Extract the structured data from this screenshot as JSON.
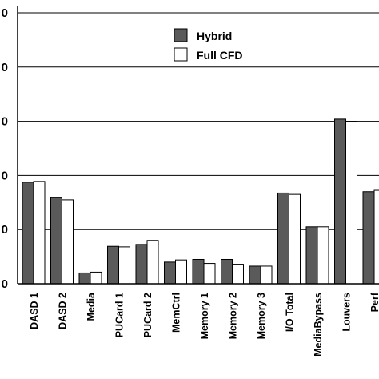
{
  "chart_data": {
    "type": "bar",
    "categories": [
      "DASD 1",
      "DASD 2",
      "Media",
      "PUCard 1",
      "PUCard 2",
      "MemCtrl",
      "Memory 1",
      "Memory 2",
      "Memory 3",
      "I/O Total",
      "MediaBypass",
      "Louvers",
      "Perf"
    ],
    "series": [
      {
        "name": "Hybrid",
        "color": "#5a5a5a",
        "values": [
          0.375,
          0.318,
          0.04,
          0.138,
          0.145,
          0.08,
          0.09,
          0.09,
          0.065,
          0.335,
          0.21,
          0.608,
          0.34
        ]
      },
      {
        "name": "Full CFD",
        "color": "#ffffff",
        "values": [
          0.378,
          0.31,
          0.043,
          0.136,
          0.16,
          0.088,
          0.075,
          0.072,
          0.065,
          0.33,
          0.21,
          0.6,
          0.345
        ]
      }
    ],
    "ylim": [
      0,
      1
    ],
    "yticks": [
      0,
      0.2,
      0.4,
      0.6,
      0.8,
      1.0
    ],
    "ytick_labels": [
      "0",
      "0",
      "0",
      "0",
      "0",
      "0"
    ],
    "grid": true,
    "legend": "top-center"
  }
}
